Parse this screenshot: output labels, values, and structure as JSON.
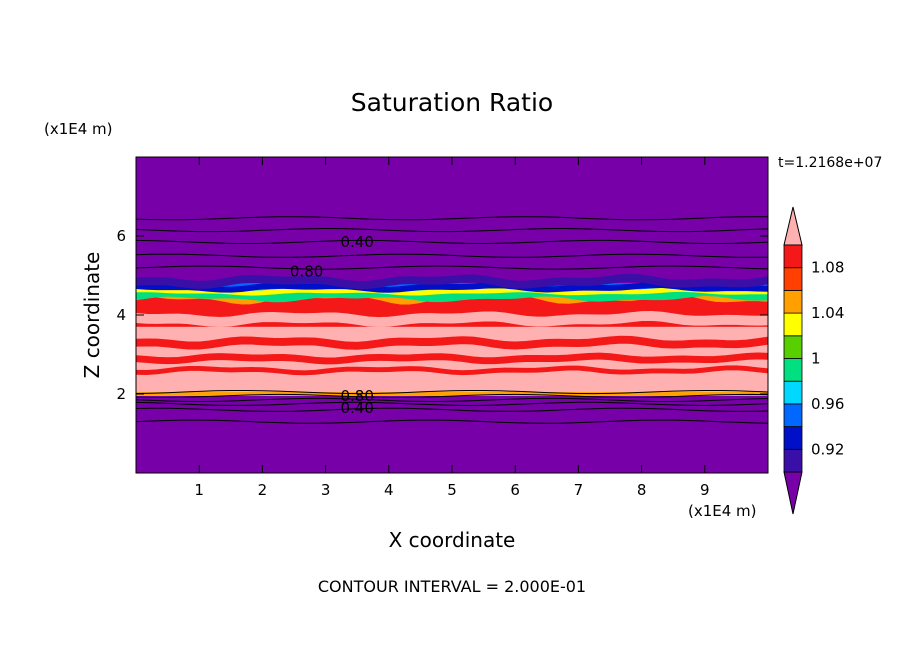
{
  "chart_data": {
    "type": "heatmap",
    "title": "Saturation Ratio",
    "xlabel": "X coordinate",
    "ylabel": "Z coordinate",
    "x_unit": "(x1E4 m)",
    "y_unit": "(x1E4 m)",
    "time_label": "t=1.2168e+07",
    "footer": "CONTOUR INTERVAL = 2.000E-01",
    "xlim": [
      0,
      10
    ],
    "ylim": [
      0,
      8
    ],
    "x_ticks": [
      1,
      2,
      3,
      4,
      5,
      6,
      7,
      8,
      9
    ],
    "y_ticks": [
      2,
      4,
      6
    ],
    "colorbar": {
      "labels": [
        "0.92",
        "0.96",
        "1",
        "1.04",
        "1.08"
      ],
      "levels": [
        0.9,
        0.92,
        0.94,
        0.96,
        0.98,
        1.0,
        1.02,
        1.04,
        1.06,
        1.08,
        1.1
      ],
      "colors": [
        "#7800a8",
        "#3a0fa8",
        "#0010c8",
        "#0068ff",
        "#00d8ff",
        "#00e080",
        "#58d000",
        "#ffff00",
        "#ffa000",
        "#ff4000",
        "#f41818",
        "#ffb0b0"
      ],
      "extend": "both"
    },
    "bands": [
      {
        "z0": 0.0,
        "z1": 1.95,
        "color": "#7800a8"
      },
      {
        "z0": 1.95,
        "z1": 2.05,
        "color": "#ffa000"
      },
      {
        "z0": 2.05,
        "z1": 3.7,
        "color": "#ffb0b0"
      },
      {
        "z0": 3.7,
        "z1": 4.45,
        "color": "#f41818"
      },
      {
        "z0": 4.45,
        "z1": 4.55,
        "color": "#58d000"
      },
      {
        "z0": 4.55,
        "z1": 4.65,
        "color": "#00d8ff"
      },
      {
        "z0": 4.65,
        "z1": 4.8,
        "color": "#0068ff"
      },
      {
        "z0": 4.8,
        "z1": 8.0,
        "color": "#7800a8"
      }
    ],
    "contour_lines_z": [
      1.3,
      1.6,
      1.75,
      1.85,
      1.95,
      2.05,
      5.2,
      5.5,
      5.85,
      6.15,
      6.45
    ],
    "contour_labels": [
      {
        "text": "0.40",
        "x": 3.5,
        "z": 5.85
      },
      {
        "text": "0.80",
        "x": 2.7,
        "z": 5.1
      },
      {
        "text": "0.80",
        "x": 3.5,
        "z": 1.95
      },
      {
        "text": "0.40",
        "x": 3.5,
        "z": 1.65
      }
    ]
  }
}
